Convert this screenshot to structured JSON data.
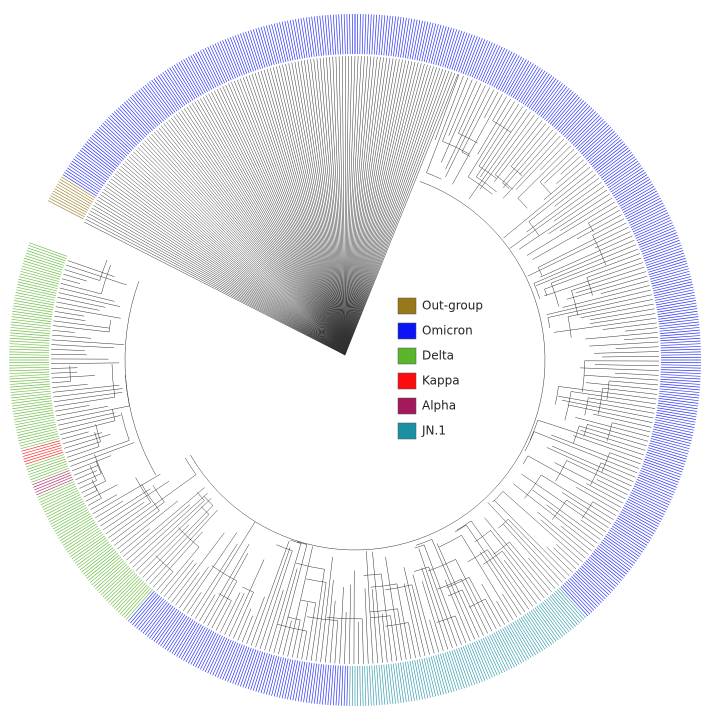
{
  "legend": {
    "items": [
      {
        "label": "Out-group",
        "color": "#97781b"
      },
      {
        "label": "Omicron",
        "color": "#0a14f5"
      },
      {
        "label": "Delta",
        "color": "#5ab52c"
      },
      {
        "label": "Kappa",
        "color": "#fb0d0d"
      },
      {
        "label": "Alpha",
        "color": "#a3195b"
      },
      {
        "label": "JN.1",
        "color": "#1b8fa3"
      }
    ]
  }
}
